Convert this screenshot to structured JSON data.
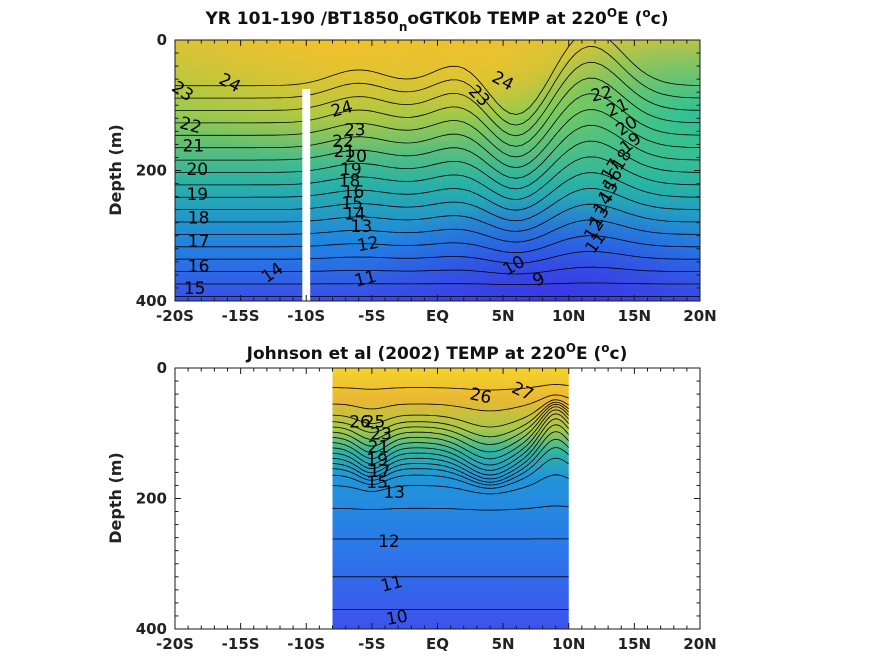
{
  "chart_data": [
    {
      "type": "contour",
      "title_main": "YR 101-190 /BT1850",
      "title_sub": "n",
      "title_rest": "oGTK0b TEMP at 220",
      "title_deg": "O",
      "title_e": "E (",
      "title_unit_sup": "o",
      "title_unit": "c)",
      "ylabel": "Depth (m)",
      "xticklabels": [
        "-20S",
        "-15S",
        "-10S",
        "-5S",
        "EQ",
        "5N",
        "10N",
        "15N",
        "20N"
      ],
      "x_values": [
        -20,
        -15,
        -10,
        -5,
        0,
        5,
        10,
        15,
        20
      ],
      "yticklabels": [
        "0",
        "200",
        "400"
      ],
      "y_values": [
        0,
        200,
        400
      ],
      "xlim": [
        -20,
        20
      ],
      "ylim": [
        0,
        400
      ],
      "colormap": [
        "#3f3fe6",
        "#1f8fe0",
        "#20b4a8",
        "#6fc95a",
        "#c6c63a",
        "#f5c42a"
      ],
      "masked_column": {
        "lat_min": -10.3,
        "lat_max": -9.7,
        "depth_min": 75,
        "depth_max": 400
      },
      "contour_labels": [
        {
          "text": "24",
          "lat": -15.8,
          "depth": 65,
          "rot": 28
        },
        {
          "text": "23",
          "lat": -19.4,
          "depth": 78,
          "rot": 35
        },
        {
          "text": "22",
          "lat": -18.8,
          "depth": 130,
          "rot": 15
        },
        {
          "text": "21",
          "lat": -18.6,
          "depth": 162,
          "rot": 0
        },
        {
          "text": "20",
          "lat": -18.3,
          "depth": 198,
          "rot": 0
        },
        {
          "text": "19",
          "lat": -18.3,
          "depth": 236,
          "rot": 0
        },
        {
          "text": "18",
          "lat": -18.2,
          "depth": 272,
          "rot": 0
        },
        {
          "text": "17",
          "lat": -18.2,
          "depth": 308,
          "rot": 0
        },
        {
          "text": "16",
          "lat": -18.2,
          "depth": 346,
          "rot": 0
        },
        {
          "text": "15",
          "lat": -18.5,
          "depth": 380,
          "rot": 0
        },
        {
          "text": "14",
          "lat": -12.6,
          "depth": 356,
          "rot": -35
        },
        {
          "text": "24",
          "lat": -7.3,
          "depth": 105,
          "rot": -15
        },
        {
          "text": "23",
          "lat": -6.3,
          "depth": 137,
          "rot": 0
        },
        {
          "text": "22",
          "lat": -7.2,
          "depth": 155,
          "rot": 0
        },
        {
          "text": "21",
          "lat": -7.1,
          "depth": 170,
          "rot": 0
        },
        {
          "text": "20",
          "lat": -6.2,
          "depth": 178,
          "rot": 0
        },
        {
          "text": "19",
          "lat": -6.6,
          "depth": 198,
          "rot": 0
        },
        {
          "text": "18",
          "lat": -6.7,
          "depth": 215,
          "rot": 0
        },
        {
          "text": "16",
          "lat": -6.4,
          "depth": 232,
          "rot": 0
        },
        {
          "text": "15",
          "lat": -6.5,
          "depth": 250,
          "rot": 0
        },
        {
          "text": "14",
          "lat": -6.3,
          "depth": 266,
          "rot": 0
        },
        {
          "text": "13",
          "lat": -5.8,
          "depth": 285,
          "rot": 0
        },
        {
          "text": "12",
          "lat": -5.3,
          "depth": 312,
          "rot": -10
        },
        {
          "text": "11",
          "lat": -5.5,
          "depth": 365,
          "rot": -15
        },
        {
          "text": "23",
          "lat": 3.2,
          "depth": 85,
          "rot": 45
        },
        {
          "text": "24",
          "lat": 5.0,
          "depth": 62,
          "rot": 28
        },
        {
          "text": "22",
          "lat": 12.5,
          "depth": 82,
          "rot": -12
        },
        {
          "text": "21",
          "lat": 13.7,
          "depth": 103,
          "rot": -22
        },
        {
          "text": "20",
          "lat": 14.4,
          "depth": 131,
          "rot": -32
        },
        {
          "text": "19",
          "lat": 14.7,
          "depth": 157,
          "rot": -40
        },
        {
          "text": "18",
          "lat": 14.0,
          "depth": 183,
          "rot": -58
        },
        {
          "text": "17",
          "lat": 13.2,
          "depth": 198,
          "rot": -58
        },
        {
          "text": "16",
          "lat": 13.3,
          "depth": 213,
          "rot": -58
        },
        {
          "text": "15",
          "lat": 13.0,
          "depth": 232,
          "rot": -58
        },
        {
          "text": "14",
          "lat": 12.6,
          "depth": 250,
          "rot": -58
        },
        {
          "text": "13",
          "lat": 12.3,
          "depth": 270,
          "rot": -58
        },
        {
          "text": "12",
          "lat": 11.9,
          "depth": 290,
          "rot": -58
        },
        {
          "text": "11",
          "lat": 12.0,
          "depth": 310,
          "rot": -55
        },
        {
          "text": "10",
          "lat": 5.8,
          "depth": 345,
          "rot": -30
        },
        {
          "text": "9",
          "lat": 7.7,
          "depth": 366,
          "rot": -30
        }
      ]
    },
    {
      "type": "contour",
      "title_main": "Johnson et al (2002) TEMP at 220",
      "title_deg": "O",
      "title_e": "E (",
      "title_unit_sup": "o",
      "title_unit": "c)",
      "ylabel": "Depth (m)",
      "xticklabels": [
        "-20S",
        "-15S",
        "-10S",
        "-5S",
        "EQ",
        "5N",
        "10N",
        "15N",
        "20N"
      ],
      "x_values": [
        -20,
        -15,
        -10,
        -5,
        0,
        5,
        10,
        15,
        20
      ],
      "yticklabels": [
        "0",
        "200",
        "400"
      ],
      "y_values": [
        0,
        200,
        400
      ],
      "xlim": [
        -20,
        20
      ],
      "ylim": [
        0,
        400
      ],
      "data_extent": {
        "lat_min": -8,
        "lat_max": 10
      },
      "contour_labels": [
        {
          "text": "26",
          "lat": 3.3,
          "depth": 42,
          "rot": 12
        },
        {
          "text": "27",
          "lat": 6.5,
          "depth": 35,
          "rot": 25
        },
        {
          "text": "26",
          "lat": -5.9,
          "depth": 82,
          "rot": 0
        },
        {
          "text": "25",
          "lat": -4.8,
          "depth": 82,
          "rot": 0
        },
        {
          "text": "23",
          "lat": -4.3,
          "depth": 100,
          "rot": 0
        },
        {
          "text": "21",
          "lat": -4.5,
          "depth": 120,
          "rot": 0
        },
        {
          "text": "19",
          "lat": -4.6,
          "depth": 140,
          "rot": 0
        },
        {
          "text": "17",
          "lat": -4.4,
          "depth": 158,
          "rot": 0
        },
        {
          "text": "15",
          "lat": -4.6,
          "depth": 175,
          "rot": 0
        },
        {
          "text": "13",
          "lat": -3.3,
          "depth": 190,
          "rot": 0
        },
        {
          "text": "12",
          "lat": -3.7,
          "depth": 265,
          "rot": 0
        },
        {
          "text": "11",
          "lat": -3.5,
          "depth": 330,
          "rot": -15
        },
        {
          "text": "10",
          "lat": -3.1,
          "depth": 382,
          "rot": -10
        }
      ]
    }
  ]
}
